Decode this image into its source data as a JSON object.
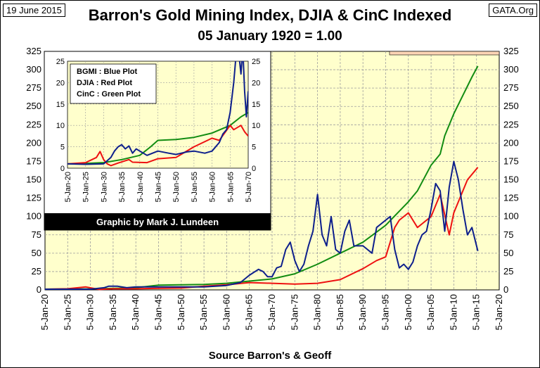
{
  "header": {
    "date": "19 June 2015",
    "site": "GATA.Org",
    "title": "Barron's Gold Mining Index, DJIA & CinC Indexed",
    "subtitle": "05 January 1920 = 1.00"
  },
  "footer": {
    "source": "Source Barron's & Geoff"
  },
  "colors": {
    "plot_bg": "#ffffcc",
    "bgmi": "#0d1f8c",
    "djia": "#ee1111",
    "cinc": "#128c12",
    "grid": "#9e9e9e",
    "bar": "#fcd5b5"
  },
  "chart_data": [
    {
      "type": "line",
      "title": "Barron's Gold Mining Index, DJIA & CinC Indexed",
      "subtitle": "05 January 1920 = 1.00",
      "xlabel": "Source Barron's & Geoff",
      "ylim": [
        0,
        325
      ],
      "xlim": [
        "5-Jan-20",
        "5-Jan-20"
      ],
      "x_year_range": [
        1920,
        2020
      ],
      "y_ticks": [
        "0",
        "25",
        "50",
        "75",
        "100",
        "125",
        "150",
        "175",
        "200",
        "225",
        "250",
        "275",
        "300",
        "325"
      ],
      "x_ticks": [
        "5-Jan-20",
        "5-Jan-25",
        "5-Jan-30",
        "5-Jan-35",
        "5-Jan-40",
        "5-Jan-45",
        "5-Jan-50",
        "5-Jan-55",
        "5-Jan-60",
        "5-Jan-65",
        "5-Jan-70",
        "5-Jan-75",
        "5-Jan-80",
        "5-Jan-85",
        "5-Jan-90",
        "5-Jan-95",
        "5-Jan-00",
        "5-Jan-05",
        "5-Jan-10",
        "5-Jan-15",
        "5-Jan-20"
      ],
      "grid": true,
      "series": [
        {
          "name": "BGMI",
          "color": "#0d1f8c",
          "x": [
            1920,
            1930,
            1933,
            1934,
            1936,
            1938,
            1940,
            1945,
            1950,
            1955,
            1960,
            1963,
            1965,
            1967,
            1968,
            1969,
            1970,
            1971,
            1972,
            1973,
            1974,
            1975,
            1976,
            1977,
            1978,
            1979,
            1980,
            1981,
            1982,
            1983,
            1984,
            1985,
            1986,
            1987,
            1988,
            1990,
            1992,
            1993,
            1994,
            1996,
            1997,
            1998,
            1999,
            2000,
            2001,
            2002,
            2003,
            2004,
            2005,
            2006,
            2007,
            2008,
            2009,
            2010,
            2011,
            2012,
            2013,
            2014,
            2015.3
          ],
          "values": [
            1,
            1,
            3,
            5,
            5,
            3,
            4,
            4,
            4,
            4,
            6,
            10,
            20,
            28,
            25,
            18,
            18,
            30,
            32,
            55,
            65,
            40,
            25,
            35,
            60,
            80,
            130,
            75,
            60,
            100,
            55,
            50,
            80,
            95,
            60,
            60,
            50,
            85,
            90,
            100,
            55,
            30,
            35,
            28,
            38,
            60,
            75,
            80,
            110,
            145,
            135,
            80,
            140,
            175,
            150,
            110,
            75,
            85,
            53
          ]
        },
        {
          "name": "DJIA",
          "color": "#ee1111",
          "x": [
            1920,
            1925,
            1929,
            1932,
            1935,
            1940,
            1945,
            1950,
            1955,
            1960,
            1965,
            1970,
            1975,
            1980,
            1985,
            1990,
            1993,
            1995,
            1997,
            1998,
            2000,
            2002,
            2003,
            2005,
            2007,
            2009,
            2010,
            2013,
            2015.3
          ],
          "values": [
            1,
            1.5,
            4,
            0.6,
            1.5,
            1.5,
            2.2,
            2.5,
            5,
            7,
            10,
            9,
            8,
            9,
            14,
            29,
            40,
            45,
            85,
            95,
            105,
            85,
            90,
            100,
            130,
            75,
            105,
            150,
            167
          ]
        },
        {
          "name": "CinC",
          "color": "#128c12",
          "x": [
            1920,
            1930,
            1935,
            1940,
            1945,
            1950,
            1955,
            1960,
            1965,
            1970,
            1975,
            1980,
            1985,
            1990,
            1995,
            2000,
            2002,
            2005,
            2007,
            2008,
            2010,
            2012,
            2014,
            2015.3
          ],
          "values": [
            1,
            1.3,
            2,
            3,
            6.5,
            7,
            7.5,
            9,
            12,
            15,
            22,
            35,
            50,
            65,
            88,
            120,
            135,
            170,
            185,
            210,
            240,
            265,
            290,
            305
          ]
        }
      ]
    },
    {
      "type": "line",
      "title": "",
      "ylim": [
        0,
        25
      ],
      "x_year_range": [
        1920,
        1970
      ],
      "y_ticks": [
        "0",
        "5",
        "10",
        "15",
        "20",
        "25"
      ],
      "x_ticks": [
        "5-Jan-20",
        "5-Jan-25",
        "5-Jan-30",
        "5-Jan-35",
        "5-Jan-40",
        "5-Jan-45",
        "5-Jan-50",
        "5-Jan-55",
        "5-Jan-60",
        "5-Jan-65",
        "5-Jan-70"
      ],
      "legend": [
        "BGMI  : Blue Plot",
        "DJIA  : Red Plot",
        "CinC  : Green Plot"
      ],
      "credit": "Graphic by Mark J. Lundeen",
      "series": [
        {
          "name": "BGMI",
          "color": "#0d1f8c",
          "x": [
            1920,
            1925,
            1930,
            1932,
            1933,
            1934,
            1935,
            1936,
            1937,
            1938,
            1939,
            1940,
            1942,
            1945,
            1948,
            1950,
            1953,
            1955,
            1958,
            1960,
            1962,
            1963,
            1964,
            1965,
            1966,
            1967,
            1968,
            1968.5,
            1969,
            1969.5,
            1970
          ],
          "values": [
            1,
            0.9,
            1,
            2.5,
            4,
            5,
            5.5,
            4.5,
            5.2,
            3.5,
            4.5,
            4,
            3,
            4,
            3.5,
            3.2,
            3.8,
            4,
            3.5,
            4,
            6,
            8,
            9,
            13,
            20,
            30,
            22,
            28,
            18,
            12,
            18
          ]
        },
        {
          "name": "DJIA",
          "color": "#ee1111",
          "x": [
            1920,
            1925,
            1928,
            1929,
            1930,
            1931,
            1932,
            1934,
            1937,
            1938,
            1942,
            1945,
            1950,
            1955,
            1960,
            1962,
            1965,
            1966,
            1968,
            1969,
            1970
          ],
          "values": [
            1,
            1.3,
            2.5,
            3.9,
            2,
            1,
            0.6,
            1.2,
            2,
            1.4,
            1.3,
            2.2,
            2.5,
            5,
            7,
            6.5,
            10,
            9,
            10,
            8.5,
            7.5
          ]
        },
        {
          "name": "CinC",
          "color": "#128c12",
          "x": [
            1920,
            1925,
            1930,
            1935,
            1940,
            1943,
            1945,
            1950,
            1955,
            1960,
            1965,
            1968,
            1970
          ],
          "values": [
            1,
            1.1,
            1.3,
            2,
            3,
            5,
            6.5,
            6.7,
            7.2,
            8.2,
            10,
            12,
            13
          ]
        }
      ]
    }
  ]
}
